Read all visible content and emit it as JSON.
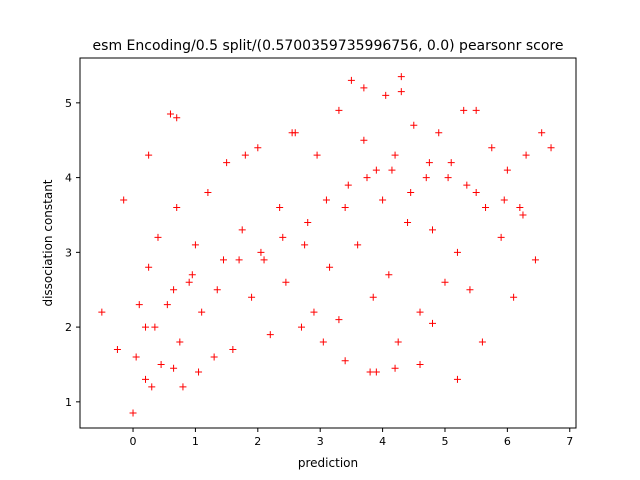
{
  "chart_data": {
    "type": "scatter",
    "title": "esm Encoding/0.5 split/(0.5700359735996756, 0.0) pearsonr score",
    "xlabel": "prediction",
    "ylabel": "dissociation constant",
    "xlim": [
      -0.85,
      7.1
    ],
    "ylim": [
      0.65,
      5.6
    ],
    "xticks": [
      "0",
      "1",
      "2",
      "3",
      "4",
      "5",
      "6",
      "7"
    ],
    "yticks": [
      "1",
      "2",
      "3",
      "4",
      "5"
    ],
    "grid": false,
    "legend": "none",
    "marker": "+",
    "color": "#ff0000",
    "series": [
      {
        "x": [
          -0.5,
          -0.25,
          -0.15,
          0.0,
          0.05,
          0.1,
          0.2,
          0.25,
          0.25,
          0.3,
          0.35,
          0.4,
          0.45,
          0.6,
          0.65,
          0.7,
          0.75,
          0.8,
          0.9,
          1.0,
          1.05,
          1.1,
          1.2,
          1.3,
          1.45,
          1.5,
          1.6,
          1.75,
          1.9,
          2.0,
          2.1,
          2.2,
          2.35,
          2.45,
          2.55,
          2.7,
          2.8,
          2.95,
          3.05,
          3.15,
          3.3,
          3.4,
          3.5,
          3.6,
          3.7,
          3.8,
          3.85,
          3.9,
          4.0,
          4.05,
          4.1,
          4.2,
          4.25,
          4.3,
          4.4,
          4.5,
          4.6,
          4.7,
          4.8,
          4.9,
          5.0,
          5.1,
          5.2,
          5.3,
          5.4,
          5.5,
          5.6,
          5.75,
          5.9,
          6.0,
          6.1,
          6.2,
          6.3,
          6.45,
          6.55,
          6.7,
          0.2,
          0.55,
          0.95,
          1.35,
          1.7,
          2.05,
          2.4,
          2.75,
          3.1,
          3.45,
          3.75,
          4.15,
          4.45,
          4.75,
          5.05,
          5.35,
          5.65,
          5.95,
          6.25,
          0.65,
          0.7,
          3.4,
          4.2,
          5.2,
          3.9,
          4.6,
          3.3,
          2.9,
          4.8,
          3.7,
          4.3,
          5.5,
          1.8,
          2.6
        ],
        "y": [
          2.2,
          1.7,
          3.7,
          0.85,
          1.6,
          2.3,
          1.3,
          2.8,
          4.3,
          1.2,
          2.0,
          3.2,
          1.5,
          4.85,
          2.5,
          3.6,
          1.8,
          1.2,
          2.6,
          3.1,
          1.4,
          2.2,
          3.8,
          1.6,
          2.9,
          4.2,
          1.7,
          3.3,
          2.4,
          4.4,
          2.9,
          1.9,
          3.6,
          2.6,
          4.6,
          2.0,
          3.4,
          4.3,
          1.8,
          2.8,
          4.9,
          3.6,
          5.3,
          3.1,
          4.5,
          1.4,
          2.4,
          4.1,
          3.7,
          5.1,
          2.7,
          4.3,
          1.8,
          5.35,
          3.4,
          4.7,
          2.2,
          4.0,
          3.3,
          4.6,
          2.6,
          4.2,
          3.0,
          4.9,
          2.5,
          3.8,
          1.8,
          4.4,
          3.2,
          4.1,
          2.4,
          3.6,
          4.3,
          2.9,
          4.6,
          4.4,
          2.0,
          2.3,
          2.7,
          2.5,
          2.9,
          3.0,
          3.2,
          3.1,
          3.7,
          3.9,
          4.0,
          4.1,
          3.8,
          4.2,
          4.0,
          3.9,
          3.6,
          3.7,
          3.5,
          1.45,
          4.8,
          1.55,
          1.45,
          1.3,
          1.4,
          1.5,
          2.1,
          2.2,
          2.05,
          5.2,
          5.15,
          4.9,
          4.3,
          4.6
        ]
      }
    ]
  }
}
